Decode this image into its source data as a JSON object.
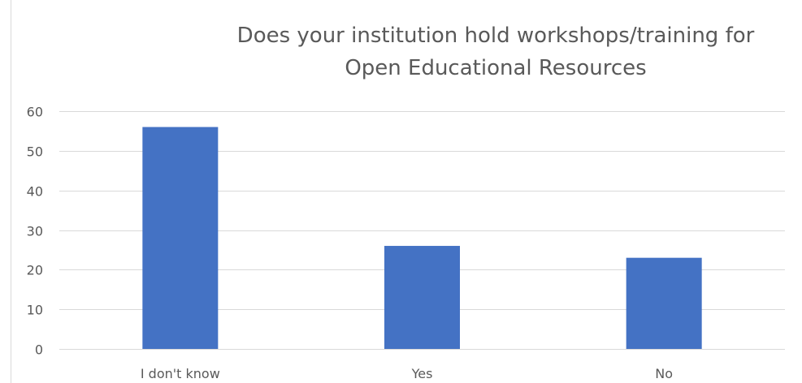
{
  "chart_data": {
    "type": "bar",
    "title": "Does your institution hold workshops/training for\nOpen Educational Resources",
    "categories": [
      "I don't know",
      "Yes",
      "No"
    ],
    "values": [
      56,
      26,
      23
    ],
    "ylim": [
      0,
      60
    ],
    "yticks": [
      0,
      10,
      20,
      30,
      40,
      50,
      60
    ],
    "xlabel": "",
    "ylabel": "",
    "grid": true,
    "legend": "none",
    "bar_color": "#4472C4",
    "grid_color": "#d9d9d9",
    "text_color": "#595959"
  }
}
